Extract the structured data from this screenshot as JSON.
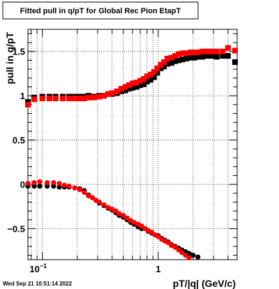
{
  "chart_data": {
    "type": "scatter",
    "title": "Fitted pull in q/pT for Global Rec Pion EtapT",
    "xlabel": "pT/|q| (GeV/c)",
    "ylabel": "pull in q/pT",
    "x_scale": "log",
    "xlim": [
      0.075,
      4.8
    ],
    "ylim": [
      -0.85,
      1.75
    ],
    "grid": true,
    "x_ticks": [
      {
        "value": 0.1,
        "label": "10",
        "exp": "−1"
      },
      {
        "value": 1,
        "label": "1",
        "exp": ""
      }
    ],
    "y_ticks": [
      {
        "value": -0.5,
        "label": "−0.5"
      },
      {
        "value": 0,
        "label": "0"
      },
      {
        "value": 0.5,
        "label": "0.5"
      },
      {
        "value": 1,
        "label": "1"
      },
      {
        "value": 1.5,
        "label": "1.5"
      }
    ],
    "timestamp": "Wed Sep 21 10:51:14 2022",
    "series": [
      {
        "color": "#000000",
        "marker": "square",
        "x": [
          0.075,
          0.085,
          0.1,
          0.115,
          0.13,
          0.15,
          0.17,
          0.19,
          0.21,
          0.23,
          0.25,
          0.28,
          0.31,
          0.34,
          0.37,
          0.4,
          0.44,
          0.48,
          0.52,
          0.56,
          0.6,
          0.65,
          0.7,
          0.75,
          0.8,
          0.86,
          0.92,
          0.98,
          1.05,
          1.12,
          1.2,
          1.3,
          1.4,
          1.5,
          1.62,
          1.75,
          1.9,
          2.05,
          2.2,
          2.4,
          2.65,
          2.9,
          3.2,
          3.6,
          4.0,
          4.6
        ],
        "y": [
          0.93,
          0.98,
          0.99,
          0.99,
          0.99,
          0.99,
          0.99,
          0.99,
          0.99,
          0.99,
          1.0,
          0.99,
          1.0,
          1.0,
          1.02,
          1.02,
          1.03,
          1.05,
          1.06,
          1.08,
          1.09,
          1.1,
          1.12,
          1.13,
          1.16,
          1.18,
          1.21,
          1.26,
          1.31,
          1.33,
          1.36,
          1.37,
          1.39,
          1.4,
          1.41,
          1.42,
          1.43,
          1.43,
          1.44,
          1.44,
          1.45,
          1.45,
          1.44,
          1.45,
          1.45,
          1.38
        ]
      },
      {
        "color": "#000000",
        "marker": "circle",
        "x": [
          0.075,
          0.085,
          0.095,
          0.11,
          0.125,
          0.14,
          0.155,
          0.17,
          0.19,
          0.21,
          0.23,
          0.25,
          0.27,
          0.29,
          0.31,
          0.34,
          0.37,
          0.4,
          0.43,
          0.46,
          0.5,
          0.54,
          0.58,
          0.62,
          0.67,
          0.72,
          0.77,
          0.82,
          0.88,
          0.94,
          1.0,
          1.07,
          1.14,
          1.22,
          1.3,
          1.4,
          1.5,
          1.6,
          1.72,
          1.85,
          2.0,
          2.2
        ],
        "y": [
          -0.02,
          -0.02,
          -0.02,
          -0.02,
          -0.02,
          -0.03,
          -0.03,
          -0.03,
          -0.04,
          -0.05,
          -0.07,
          -0.12,
          -0.15,
          -0.18,
          -0.21,
          -0.24,
          -0.27,
          -0.29,
          -0.32,
          -0.35,
          -0.37,
          -0.4,
          -0.43,
          -0.45,
          -0.48,
          -0.5,
          -0.5,
          -0.53,
          -0.55,
          -0.57,
          -0.58,
          -0.61,
          -0.63,
          -0.65,
          -0.68,
          -0.7,
          -0.72,
          -0.74,
          -0.76,
          -0.78,
          -0.8,
          -0.82
        ]
      },
      {
        "color": "#ff0000",
        "marker": "square",
        "x": [
          0.075,
          0.085,
          0.1,
          0.115,
          0.13,
          0.15,
          0.17,
          0.19,
          0.21,
          0.23,
          0.25,
          0.28,
          0.31,
          0.34,
          0.37,
          0.4,
          0.44,
          0.48,
          0.52,
          0.56,
          0.6,
          0.65,
          0.7,
          0.75,
          0.8,
          0.86,
          0.92,
          0.98,
          1.05,
          1.12,
          1.2,
          1.3,
          1.4,
          1.5,
          1.62,
          1.75,
          1.9,
          2.05,
          2.2,
          2.4,
          2.65,
          2.9,
          3.2,
          3.6,
          4.0,
          4.6
        ],
        "y": [
          0.9,
          0.96,
          0.97,
          0.97,
          0.97,
          0.97,
          0.97,
          0.97,
          0.97,
          0.97,
          0.98,
          0.98,
          0.99,
          1.0,
          1.02,
          1.03,
          1.05,
          1.08,
          1.1,
          1.12,
          1.14,
          1.15,
          1.17,
          1.19,
          1.22,
          1.24,
          1.27,
          1.31,
          1.35,
          1.38,
          1.42,
          1.43,
          1.45,
          1.47,
          1.48,
          1.48,
          1.49,
          1.49,
          1.49,
          1.5,
          1.5,
          1.5,
          1.5,
          1.5,
          1.54,
          1.51
        ]
      },
      {
        "color": "#ff0000",
        "marker": "circle",
        "x": [
          0.075,
          0.085,
          0.095,
          0.11,
          0.125,
          0.14,
          0.155,
          0.17,
          0.19,
          0.21,
          0.23,
          0.25,
          0.27,
          0.29,
          0.31,
          0.34,
          0.37,
          0.4,
          0.43,
          0.46,
          0.5,
          0.54,
          0.58,
          0.62,
          0.67,
          0.72,
          0.77,
          0.82,
          0.88,
          0.94,
          1.0,
          1.07,
          1.14,
          1.22,
          1.3,
          1.4,
          1.5,
          1.6,
          1.72,
          1.85
        ],
        "y": [
          0.01,
          0.02,
          0.03,
          0.02,
          0.02,
          0.01,
          -0.01,
          -0.02,
          -0.04,
          -0.06,
          -0.09,
          -0.13,
          -0.15,
          -0.18,
          -0.2,
          -0.23,
          -0.26,
          -0.28,
          -0.3,
          -0.33,
          -0.35,
          -0.38,
          -0.41,
          -0.43,
          -0.45,
          -0.47,
          -0.5,
          -0.52,
          -0.54,
          -0.57,
          -0.59,
          -0.62,
          -0.64,
          -0.66,
          -0.69,
          -0.71,
          -0.74,
          -0.77,
          -0.8,
          -0.83
        ]
      }
    ]
  }
}
